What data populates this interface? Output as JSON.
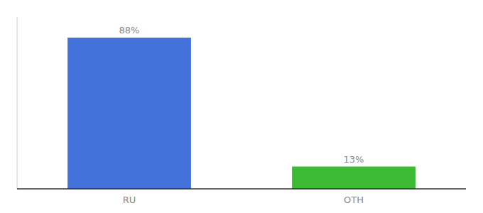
{
  "chart_data": {
    "type": "bar",
    "categories": [
      "RU",
      "OTH"
    ],
    "values": [
      88,
      13
    ],
    "value_labels": [
      "88%",
      "13%"
    ],
    "colors": [
      "#4472db",
      "#3dbb35"
    ],
    "ylim": [
      0,
      100
    ],
    "grid": false,
    "data_labels": true,
    "tick_labels": "x"
  }
}
